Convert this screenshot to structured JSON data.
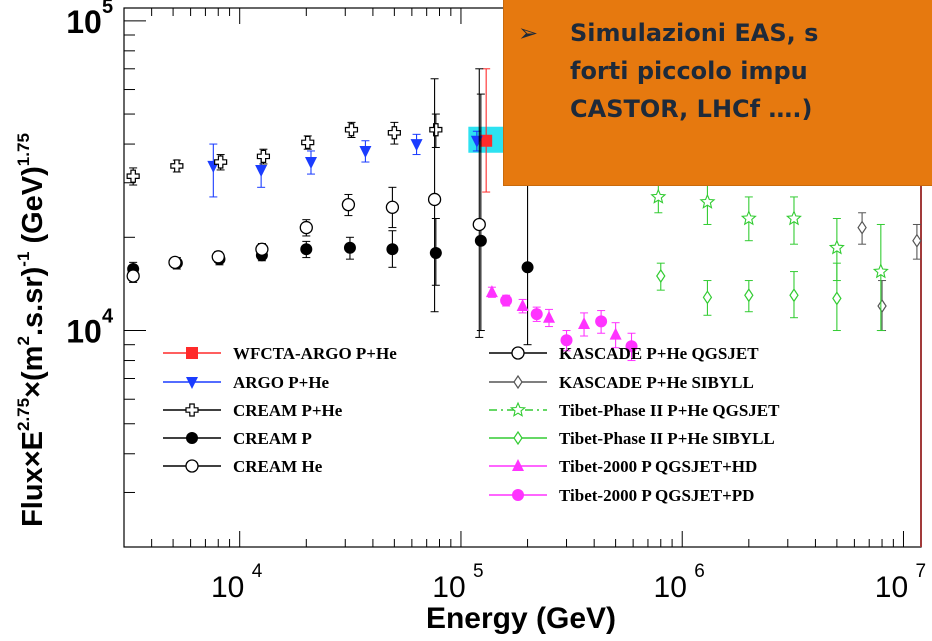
{
  "chart_data": {
    "type": "scatter",
    "title": "",
    "xlabel": "Energy (GeV)",
    "ylabel_parts": {
      "a": "Flux×E",
      "a_sup": "2.75",
      "b": "×(m",
      "b_sup": "2",
      "c": ".s.sr)",
      "c_sup": "-1",
      "d": " (GeV)",
      "d_sup": "1.75"
    },
    "x_scale": "log",
    "y_scale": "log",
    "xlim": [
      3000,
      12000000
    ],
    "ylim": [
      2000,
      110000
    ],
    "x_ticks": [
      {
        "value": 10000,
        "base": "10",
        "exp": "4"
      },
      {
        "value": 100000,
        "base": "10",
        "exp": "5"
      },
      {
        "value": 1000000,
        "base": "10",
        "exp": "6"
      },
      {
        "value": 10000000,
        "base": "10",
        "exp": "7"
      }
    ],
    "y_ticks": [
      {
        "value": 10000,
        "base": "10",
        "exp": "4"
      },
      {
        "value": 100000,
        "base": "10",
        "exp": "5"
      }
    ],
    "legend_position": "lower-left",
    "series": [
      {
        "name": "WFCTA-ARGO P+He",
        "color": "#ff2a2a",
        "marker": "square-filled",
        "line": "solid",
        "points": [
          [
            130000,
            41000,
            28000,
            70000
          ]
        ]
      },
      {
        "name": "ARGO P+He",
        "color": "#1a3cff",
        "marker": "triangle-down-filled",
        "line": "solid",
        "points": [
          [
            7600,
            34000,
            27000,
            40000
          ],
          [
            12500,
            33000,
            29000,
            37000
          ],
          [
            21000,
            35000,
            32000,
            38000
          ],
          [
            37000,
            38000,
            35000,
            41000
          ],
          [
            63000,
            40000,
            37000,
            43000
          ],
          [
            118000,
            41000,
            38000,
            44000
          ]
        ]
      },
      {
        "name": "CREAM P+He",
        "color": "#000000",
        "marker": "cross-open",
        "line": "solid",
        "points": [
          [
            3300,
            31500,
            29500,
            33500
          ],
          [
            5200,
            34000,
            32500,
            35500
          ],
          [
            8200,
            35000,
            33000,
            37000
          ],
          [
            12800,
            36500,
            34500,
            38500
          ],
          [
            20300,
            40500,
            38500,
            42500
          ],
          [
            32000,
            44500,
            42000,
            47000
          ],
          [
            50000,
            43500,
            40000,
            47000
          ],
          [
            77000,
            44500,
            39000,
            50000
          ]
        ]
      },
      {
        "name": "CREAM P",
        "color": "#000000",
        "marker": "circle-filled",
        "line": "solid",
        "points": [
          [
            3300,
            15800,
            15000,
            16600
          ],
          [
            5200,
            16500,
            15800,
            17200
          ],
          [
            8100,
            17000,
            16300,
            17700
          ],
          [
            12600,
            17500,
            16800,
            18200
          ],
          [
            20000,
            18300,
            17200,
            19400
          ],
          [
            31500,
            18500,
            17000,
            20000
          ],
          [
            49000,
            18300,
            16000,
            21000
          ],
          [
            77000,
            17800,
            14000,
            23000
          ],
          [
            123000,
            19500,
            10000,
            58000
          ],
          [
            200000,
            16000,
            9000,
            30000
          ]
        ]
      },
      {
        "name": "CREAM He",
        "color": "#000000",
        "marker": "circle-open",
        "line": "solid",
        "points": [
          [
            3300,
            15000,
            14300,
            15700
          ],
          [
            5100,
            16600,
            16000,
            17200
          ],
          [
            8000,
            17300,
            16600,
            18000
          ],
          [
            12600,
            18300,
            17500,
            19100
          ],
          [
            20000,
            21500,
            20200,
            22800
          ],
          [
            31000,
            25500,
            23500,
            27500
          ],
          [
            49000,
            25000,
            21500,
            29000
          ],
          [
            76000,
            26500,
            11500,
            65000
          ],
          [
            121000,
            22000,
            9500,
            70000
          ]
        ]
      },
      {
        "name": "KASCADE P+He QGSJET",
        "color": "#000000",
        "marker": "circle-open",
        "line": "solid",
        "points": []
      },
      {
        "name": "KASCADE P+He SIBYLL",
        "color": "#555555",
        "marker": "diamond-open",
        "line": "solid",
        "points": [
          [
            8000000,
            12000,
            10000,
            14500
          ],
          [
            6500000,
            21500,
            19000,
            24000
          ],
          [
            11500000,
            19500,
            17000,
            22000
          ]
        ]
      },
      {
        "name": "Tibet-Phase II P+He QGSJET",
        "color": "#33cc33",
        "marker": "star-open",
        "line": "dashdot",
        "points": [
          [
            780000,
            27000,
            24000,
            30000
          ],
          [
            1300000,
            26000,
            22000,
            30000
          ],
          [
            2000000,
            23000,
            19500,
            27000
          ],
          [
            3200000,
            23000,
            19000,
            27000
          ],
          [
            5000000,
            18500,
            14500,
            23000
          ],
          [
            7900000,
            15500,
            10000,
            22000
          ]
        ]
      },
      {
        "name": "Tibet-Phase II P+He SIBYLL",
        "color": "#33cc33",
        "marker": "diamond-open",
        "line": "solid",
        "points": [
          [
            800000,
            15000,
            13500,
            16500
          ],
          [
            1300000,
            12800,
            11200,
            14500
          ],
          [
            2000000,
            13000,
            11500,
            14500
          ],
          [
            3200000,
            13000,
            11000,
            15500
          ],
          [
            5000000,
            12700,
            10000,
            16500
          ]
        ]
      },
      {
        "name": "Tibet-2000 P QGSJET+HD",
        "color": "#ff33ff",
        "marker": "triangle-up-filled",
        "line": "solid",
        "points": [
          [
            138000,
            13300,
            12800,
            13800
          ],
          [
            190000,
            12000,
            11400,
            12600
          ],
          [
            250000,
            11000,
            10300,
            11700
          ],
          [
            360000,
            10500,
            9600,
            11400
          ],
          [
            500000,
            9700,
            8800,
            10600
          ]
        ]
      },
      {
        "name": "Tibet-2000 P QGSJET+PD",
        "color": "#ff33ff",
        "marker": "circle-filled",
        "line": "solid",
        "points": [
          [
            160000,
            12500,
            12000,
            13000
          ],
          [
            220000,
            11300,
            10700,
            11900
          ],
          [
            300000,
            9300,
            8600,
            10000
          ],
          [
            430000,
            10700,
            9800,
            11600
          ],
          [
            590000,
            8900,
            8000,
            9800
          ]
        ]
      }
    ]
  },
  "overlay": {
    "bullet": "➢",
    "lines": [
      "Simulazioni EAS, s",
      "forti piccolo impu",
      "CASTOR, LHCf ….)"
    ]
  }
}
